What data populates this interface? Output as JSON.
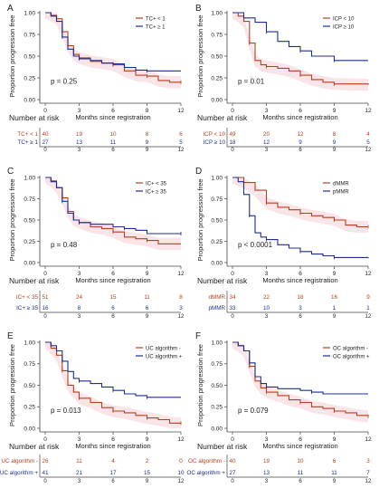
{
  "figure": {
    "y_axis_label": "Proportion progression free"
  },
  "colors": {
    "red": "#b5401e",
    "blue": "#1c2f8f",
    "ci_band": "#f4d0d6"
  },
  "chart_data": [
    {
      "panel": "A",
      "type": "line",
      "xlabel": "Months since registration",
      "ylabel": "Proportion progression free",
      "xlim": [
        0,
        12
      ],
      "ylim": [
        0,
        1
      ],
      "xticks": [
        0,
        3,
        6,
        9,
        12
      ],
      "yticks": [
        "0.00",
        "0.25",
        "0.50",
        "0.75",
        "1.00"
      ],
      "legend": {
        "position": "top-right"
      },
      "p_value": "p = 0.25",
      "series": [
        {
          "name": "TC+ < 1",
          "color": "red",
          "points": [
            [
              0,
              1
            ],
            [
              0.5,
              0.97
            ],
            [
              1,
              0.93
            ],
            [
              1.5,
              0.78
            ],
            [
              2,
              0.62
            ],
            [
              2.5,
              0.52
            ],
            [
              3,
              0.48
            ],
            [
              4,
              0.44
            ],
            [
              5,
              0.42
            ],
            [
              6,
              0.4
            ],
            [
              7,
              0.33
            ],
            [
              8,
              0.28
            ],
            [
              9,
              0.27
            ],
            [
              10,
              0.22
            ],
            [
              11,
              0.2
            ],
            [
              12,
              0.2
            ]
          ]
        },
        {
          "name": "TC+ ≥ 1",
          "color": "blue",
          "points": [
            [
              0,
              1
            ],
            [
              0.5,
              0.96
            ],
            [
              1,
              0.9
            ],
            [
              1.5,
              0.72
            ],
            [
              2,
              0.58
            ],
            [
              2.5,
              0.5
            ],
            [
              3,
              0.47
            ],
            [
              4,
              0.45
            ],
            [
              5,
              0.42
            ],
            [
              6,
              0.41
            ],
            [
              7,
              0.37
            ],
            [
              8,
              0.34
            ],
            [
              9,
              0.33
            ],
            [
              12,
              0.33
            ]
          ]
        }
      ],
      "risk_table": {
        "title": "Number at risk",
        "times": [
          0,
          3,
          6,
          9,
          12
        ],
        "rows": [
          {
            "label": "TC+ < 1",
            "color": "red",
            "values": [
              40,
              19,
              10,
              8,
              6
            ]
          },
          {
            "label": "TC+ ≥ 1",
            "color": "blue",
            "values": [
              27,
              13,
              11,
              9,
              5
            ]
          }
        ]
      }
    },
    {
      "panel": "B",
      "type": "line",
      "xlabel": "Months since registration",
      "ylabel": "Proportion progression free",
      "xlim": [
        0,
        12
      ],
      "ylim": [
        0,
        1
      ],
      "xticks": [
        0,
        3,
        6,
        9,
        12
      ],
      "yticks": [
        "0.00",
        "0.25",
        "0.50",
        "0.75",
        "1.00"
      ],
      "legend": {
        "position": "top-right"
      },
      "p_value": "p = 0.01",
      "series": [
        {
          "name": "ICP < 10",
          "color": "red",
          "points": [
            [
              0,
              1
            ],
            [
              0.5,
              0.96
            ],
            [
              1,
              0.9
            ],
            [
              1.5,
              0.65
            ],
            [
              2,
              0.45
            ],
            [
              2.5,
              0.4
            ],
            [
              3,
              0.38
            ],
            [
              4,
              0.36
            ],
            [
              5,
              0.33
            ],
            [
              6,
              0.28
            ],
            [
              7,
              0.23
            ],
            [
              8,
              0.2
            ],
            [
              9,
              0.18
            ],
            [
              12,
              0.17
            ]
          ]
        },
        {
          "name": "ICP ≥ 10",
          "color": "blue",
          "points": [
            [
              0,
              1
            ],
            [
              1,
              0.94
            ],
            [
              2,
              0.89
            ],
            [
              3,
              0.78
            ],
            [
              4,
              0.67
            ],
            [
              5,
              0.61
            ],
            [
              6,
              0.56
            ],
            [
              7,
              0.5
            ],
            [
              8,
              0.5
            ],
            [
              9,
              0.45
            ],
            [
              12,
              0.45
            ]
          ]
        }
      ],
      "risk_table": {
        "title": "Number at risk",
        "times": [
          0,
          3,
          6,
          9,
          12
        ],
        "rows": [
          {
            "label": "ICP < 10",
            "color": "red",
            "values": [
              49,
              20,
              12,
              8,
              4
            ]
          },
          {
            "label": "ICP ≥ 10",
            "color": "blue",
            "values": [
              18,
              12,
              9,
              9,
              5
            ]
          }
        ]
      }
    },
    {
      "panel": "C",
      "type": "line",
      "xlabel": "Months since registration",
      "ylabel": "Proportion progression free",
      "xlim": [
        0,
        12
      ],
      "ylim": [
        0,
        1
      ],
      "xticks": [
        0,
        3,
        6,
        9,
        12
      ],
      "yticks": [
        "0.00",
        "0.25",
        "0.50",
        "0.75",
        "1.00"
      ],
      "legend": {
        "position": "top-right"
      },
      "p_value": "p = 0.48",
      "series": [
        {
          "name": "IC+ < 35",
          "color": "red",
          "points": [
            [
              0,
              1
            ],
            [
              0.5,
              0.96
            ],
            [
              1,
              0.88
            ],
            [
              1.5,
              0.76
            ],
            [
              2,
              0.6
            ],
            [
              2.5,
              0.5
            ],
            [
              3,
              0.47
            ],
            [
              4,
              0.42
            ],
            [
              5,
              0.4
            ],
            [
              6,
              0.36
            ],
            [
              7,
              0.3
            ],
            [
              8,
              0.28
            ],
            [
              9,
              0.26
            ],
            [
              10,
              0.22
            ],
            [
              12,
              0.22
            ]
          ]
        },
        {
          "name": "IC+ ≥ 35",
          "color": "blue",
          "points": [
            [
              0,
              1
            ],
            [
              0.5,
              0.95
            ],
            [
              1,
              0.88
            ],
            [
              1.5,
              0.72
            ],
            [
              2,
              0.58
            ],
            [
              2.5,
              0.5
            ],
            [
              3,
              0.47
            ],
            [
              4,
              0.45
            ],
            [
              6,
              0.42
            ],
            [
              7,
              0.4
            ],
            [
              8,
              0.38
            ],
            [
              9,
              0.34
            ],
            [
              12,
              0.34
            ]
          ]
        }
      ],
      "risk_table": {
        "title": "Number at risk",
        "times": [
          0,
          3,
          6,
          9,
          12
        ],
        "rows": [
          {
            "label": "IC+ < 35",
            "color": "red",
            "values": [
              51,
              24,
              15,
              11,
              8
            ]
          },
          {
            "label": "IC+ ≥ 35",
            "color": "blue",
            "values": [
              16,
              8,
              6,
              6,
              3
            ]
          }
        ]
      }
    },
    {
      "panel": "D",
      "type": "line",
      "xlabel": "Months since registration",
      "ylabel": "Proportion progression free",
      "xlim": [
        0,
        12
      ],
      "ylim": [
        0,
        1
      ],
      "xticks": [
        0,
        3,
        6,
        9,
        12
      ],
      "yticks": [
        "0.00",
        "0.25",
        "0.50",
        "0.75",
        "1.00"
      ],
      "legend": {
        "position": "top-right"
      },
      "p_value": "p < 0.0001",
      "series": [
        {
          "name": "dMMR",
          "color": "red",
          "points": [
            [
              0,
              1
            ],
            [
              1,
              0.94
            ],
            [
              2,
              0.85
            ],
            [
              3,
              0.7
            ],
            [
              4,
              0.65
            ],
            [
              5,
              0.62
            ],
            [
              6,
              0.58
            ],
            [
              7,
              0.55
            ],
            [
              8,
              0.53
            ],
            [
              9,
              0.5
            ],
            [
              10,
              0.44
            ],
            [
              11,
              0.42
            ],
            [
              12,
              0.42
            ]
          ]
        },
        {
          "name": "pMMR",
          "color": "blue",
          "points": [
            [
              0,
              1
            ],
            [
              0.5,
              0.95
            ],
            [
              1,
              0.8
            ],
            [
              1.5,
              0.55
            ],
            [
              2,
              0.35
            ],
            [
              2.5,
              0.3
            ],
            [
              3,
              0.27
            ],
            [
              4,
              0.21
            ],
            [
              5,
              0.17
            ],
            [
              6,
              0.13
            ],
            [
              7,
              0.1
            ],
            [
              8,
              0.08
            ],
            [
              9,
              0.06
            ],
            [
              12,
              0.05
            ]
          ]
        }
      ],
      "risk_table": {
        "title": "Number at risk",
        "times": [
          0,
          3,
          6,
          9,
          12
        ],
        "rows": [
          {
            "label": "dMMR",
            "color": "red",
            "values": [
              34,
              22,
              18,
              16,
              9
            ]
          },
          {
            "label": "pMMR",
            "color": "blue",
            "values": [
              33,
              10,
              3,
              1,
              1
            ]
          }
        ]
      }
    },
    {
      "panel": "E",
      "type": "line",
      "xlabel": "Months since registration",
      "ylabel": "Proportion progression free",
      "xlim": [
        0,
        12
      ],
      "ylim": [
        0,
        1
      ],
      "xticks": [
        0,
        3,
        6,
        9,
        12
      ],
      "yticks": [
        "0.00",
        "0.25",
        "0.50",
        "0.75",
        "1.00"
      ],
      "legend": {
        "position": "top-right"
      },
      "p_value": "p = 0.013",
      "series": [
        {
          "name": "UC algorithm -",
          "color": "red",
          "points": [
            [
              0,
              1
            ],
            [
              0.5,
              0.93
            ],
            [
              1,
              0.85
            ],
            [
              1.5,
              0.67
            ],
            [
              2,
              0.5
            ],
            [
              2.5,
              0.42
            ],
            [
              3,
              0.35
            ],
            [
              4,
              0.3
            ],
            [
              5,
              0.24
            ],
            [
              6,
              0.2
            ],
            [
              7,
              0.18
            ],
            [
              8,
              0.15
            ],
            [
              9,
              0.12
            ],
            [
              10,
              0.1
            ],
            [
              11,
              0.06
            ],
            [
              12,
              0.06
            ]
          ]
        },
        {
          "name": "UC algorithm +",
          "color": "blue",
          "points": [
            [
              0,
              1
            ],
            [
              0.5,
              0.96
            ],
            [
              1,
              0.9
            ],
            [
              1.5,
              0.78
            ],
            [
              2,
              0.66
            ],
            [
              2.5,
              0.58
            ],
            [
              3,
              0.55
            ],
            [
              4,
              0.52
            ],
            [
              5,
              0.48
            ],
            [
              6,
              0.44
            ],
            [
              7,
              0.4
            ],
            [
              8,
              0.38
            ],
            [
              9,
              0.36
            ],
            [
              12,
              0.36
            ]
          ]
        }
      ],
      "risk_table": {
        "title": "Number at risk",
        "times": [
          0,
          3,
          6,
          9,
          12
        ],
        "rows": [
          {
            "label": "UC algorithm -",
            "color": "red",
            "values": [
              26,
              11,
              4,
              2,
              0
            ]
          },
          {
            "label": "UC algorithm +",
            "color": "blue",
            "values": [
              41,
              21,
              17,
              15,
              10
            ]
          }
        ]
      }
    },
    {
      "panel": "F",
      "type": "line",
      "xlabel": "Months since registration",
      "ylabel": "Proportion progression free",
      "xlim": [
        0,
        12
      ],
      "ylim": [
        0,
        1
      ],
      "xticks": [
        0,
        3,
        6,
        9,
        12
      ],
      "yticks": [
        "0.00",
        "0.25",
        "0.50",
        "0.75",
        "1.00"
      ],
      "legend": {
        "position": "top-right"
      },
      "p_value": "p = 0.079",
      "series": [
        {
          "name": "OC algorithm -",
          "color": "red",
          "points": [
            [
              0,
              1
            ],
            [
              0.5,
              0.96
            ],
            [
              1,
              0.9
            ],
            [
              1.5,
              0.72
            ],
            [
              2,
              0.55
            ],
            [
              2.5,
              0.47
            ],
            [
              3,
              0.42
            ],
            [
              4,
              0.38
            ],
            [
              5,
              0.33
            ],
            [
              6,
              0.3
            ],
            [
              7,
              0.25
            ],
            [
              8,
              0.23
            ],
            [
              9,
              0.2
            ],
            [
              10,
              0.18
            ],
            [
              11,
              0.15
            ],
            [
              12,
              0.14
            ]
          ]
        },
        {
          "name": "OC algorithm +",
          "color": "blue",
          "points": [
            [
              0,
              1
            ],
            [
              0.5,
              0.96
            ],
            [
              1,
              0.9
            ],
            [
              1.5,
              0.76
            ],
            [
              2,
              0.6
            ],
            [
              2.5,
              0.52
            ],
            [
              3,
              0.48
            ],
            [
              4,
              0.46
            ],
            [
              6,
              0.44
            ],
            [
              7,
              0.42
            ],
            [
              8,
              0.4
            ],
            [
              12,
              0.4
            ]
          ]
        }
      ],
      "risk_table": {
        "title": "Number at risk",
        "times": [
          0,
          3,
          6,
          9,
          12
        ],
        "rows": [
          {
            "label": "OC algorithm -",
            "color": "red",
            "values": [
              40,
              19,
              10,
              6,
              3
            ]
          },
          {
            "label": "OC algorithm +",
            "color": "blue",
            "values": [
              27,
              13,
              11,
              11,
              7
            ]
          }
        ]
      }
    }
  ]
}
